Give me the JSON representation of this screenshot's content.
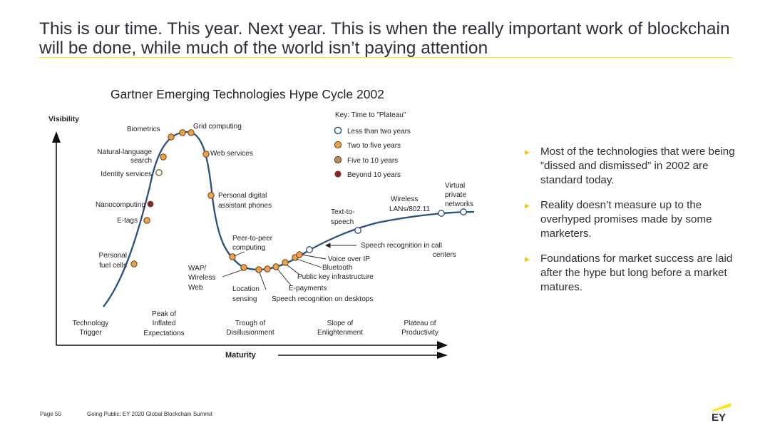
{
  "title": "This is our time. This year. Next year. This is when the really important work of blockchain will be done, while much of the world isn’t paying attention",
  "diagram": {
    "heading": "Gartner Emerging Technologies Hype Cycle 2002",
    "y_axis": "Visibility",
    "x_axis": "Maturity",
    "key": {
      "title": "Key: Time to \"Plateau\"",
      "items": [
        "Less than two years",
        "Two to five years",
        "Five to 10 years",
        "Beyond 10 years"
      ]
    },
    "technologies": {
      "biometrics": "Biometrics",
      "grid": "Grid computing",
      "nl1": "Natural-language",
      "nl2": "search",
      "web_services": "Web services",
      "identity": "Identity services",
      "pda1": "Personal digital",
      "pda2": "assistant phones",
      "nano": "Nanocomputing",
      "etags": "E-tags",
      "wireless1": "Wireless",
      "wireless2": "LANs/802.11",
      "virtual1": "Virtual",
      "virtual2": "private",
      "virtual3": "networks",
      "tts1": "Text-to-",
      "tts2": "speech",
      "p2p1": "Peer-to-peer",
      "p2p2": "computing",
      "speech_call1": "Speech recognition in call",
      "speech_call2": "centers",
      "fuel1": "Personal",
      "fuel2": "fuel cells",
      "wap1": "WAP/",
      "wap2": "Wireless",
      "wap3": "Web",
      "voip": "Voice over IP",
      "bluetooth": "Bluetooth",
      "pki": "Public key infrastructure",
      "loc1": "Location",
      "loc2": "sensing",
      "epay": "E-payments",
      "speech_desk": "Speech recognition on desktops"
    },
    "phases": {
      "trigger1": "Technology",
      "trigger2": "Trigger",
      "peak1": "Peak of",
      "peak2": "Inflated",
      "peak3": "Expectations",
      "trough1": "Trough of",
      "trough2": "Disillusionment",
      "slope1": "Slope of",
      "slope2": "Enlightenment",
      "plateau1": "Plateau of",
      "plateau2": "Productivity"
    }
  },
  "bullets": [
    "Most of the technologies that were being ”dissed and dismissed” in 2002 are standard today.",
    "Reality doesn’t measure up to the overhyped promises made by some marketers.",
    "Foundations for market success are laid after the hype but long before a market matures."
  ],
  "bullet_marker": "►",
  "footer": {
    "page": "Page 50",
    "event": "Going Public: EY 2020 Global Blockchain Summit"
  },
  "logo_text": "EY",
  "colors": {
    "accent": "#ffe600",
    "curve": "#2b4f7e",
    "dot_orange": "#e9a44a",
    "dot_brown": "#7a2f22",
    "text": "#2e2e38"
  }
}
